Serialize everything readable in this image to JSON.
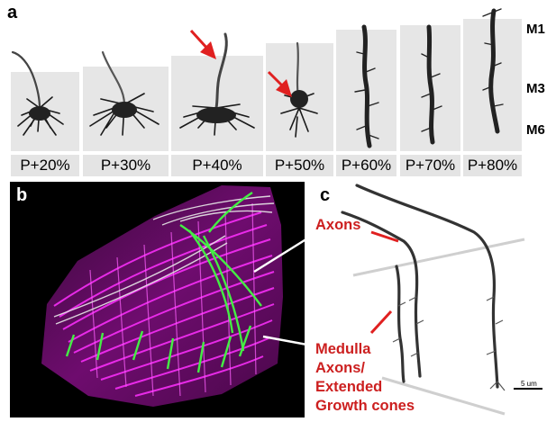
{
  "panels": {
    "a": "a",
    "b": "b",
    "c": "c"
  },
  "stages": [
    "P+20%",
    "P+30%",
    "P+40%",
    "P+50%",
    "P+60%",
    "P+70%",
    "P+80%"
  ],
  "layers": {
    "m1": "M1",
    "m3": "M3",
    "m6": "M6"
  },
  "callouts": {
    "axons": "Axons",
    "medulla_lines": [
      "Medulla",
      "Axons/",
      "Extended",
      "Growth cones"
    ]
  },
  "scale_bar": "5 um",
  "colors": {
    "arrow": "#e02020",
    "callout_text": "#cc1f1f",
    "panel_b_background": "#6a0a6a",
    "panel_b_magenta": "#ff30ff",
    "panel_b_green": "#44ee44"
  }
}
